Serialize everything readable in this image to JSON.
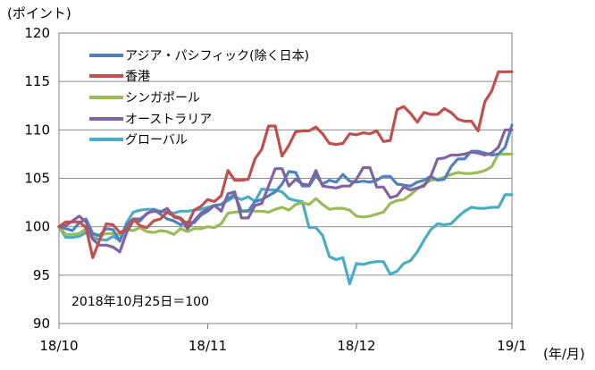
{
  "chart_data": {
    "type": "line",
    "ylabel": "(ポイント)",
    "xunit_label": "(年/月)",
    "annotation": "2018年10月25日＝100",
    "ylim": [
      90,
      120
    ],
    "yticks": [
      "120",
      "115",
      "110",
      "105",
      "100",
      "95",
      "90"
    ],
    "ytick_values": [
      120,
      115,
      110,
      105,
      100,
      95,
      90
    ],
    "xticks": [
      "18/10",
      "18/11",
      "18/12",
      "19/1"
    ],
    "xtick_values": [
      0,
      22,
      44,
      67
    ],
    "xlim": [
      0,
      67
    ],
    "series": [
      {
        "name": "アジア・パシフィック(除く日本)",
        "color": "#4F81BD",
        "values": [
          100,
          99.8,
          99.6,
          100.4,
          100.8,
          99.3,
          99.1,
          99.8,
          99.7,
          98.5,
          100.2,
          100.8,
          100.8,
          101.3,
          101.8,
          101.3,
          100.8,
          100.6,
          100.2,
          100.5,
          100.4,
          101.2,
          101.6,
          102.2,
          102.3,
          102.9,
          103.3,
          101.6,
          101.6,
          102.6,
          102.8,
          103.2,
          103.6,
          104.4,
          105.7,
          105.6,
          104.2,
          104.2,
          105.3,
          104.4,
          104.8,
          104.6,
          105.4,
          104.7,
          104.6,
          104.7,
          104.6,
          104.8,
          105.2,
          105.2,
          104.4,
          104.3,
          104.2,
          104.6,
          104.8,
          105.2,
          104.8,
          104.9,
          106.2,
          107.0,
          107.0,
          107.8,
          107.8,
          107.6,
          107.4,
          107.5,
          108.2,
          110.5
        ]
      },
      {
        "name": "香港",
        "color": "#C0504D",
        "values": [
          100,
          100.5,
          100.5,
          100.5,
          99.9,
          96.8,
          98.6,
          100.3,
          100.2,
          99.4,
          99.7,
          100.8,
          100.1,
          99.9,
          100.6,
          100.8,
          101.5,
          101.1,
          100.9,
          100.2,
          101.7,
          102.1,
          102.8,
          102.6,
          103.2,
          105.8,
          104.8,
          104.8,
          104.9,
          107.0,
          108.0,
          110.4,
          110.4,
          107.3,
          108.4,
          109.8,
          109.9,
          109.9,
          110.3,
          109.6,
          108.6,
          108.5,
          108.6,
          109.6,
          109.5,
          109.7,
          109.6,
          109.9,
          108.8,
          108.9,
          112.1,
          112.4,
          111.7,
          110.8,
          111.8,
          111.6,
          111.6,
          112.2,
          111.8,
          111.1,
          110.9,
          110.9,
          109.9,
          112.9,
          114.0,
          116.0,
          116.0,
          116.0
        ]
      },
      {
        "name": "シンガポール",
        "color": "#9BBB59",
        "values": [
          100,
          99.2,
          99.2,
          99.3,
          99.8,
          99.0,
          99.1,
          99.3,
          99.3,
          99.2,
          99.7,
          99.6,
          99.9,
          99.5,
          99.4,
          99.6,
          99.5,
          99.2,
          99.8,
          99.5,
          99.8,
          99.8,
          100.0,
          99.9,
          100.3,
          101.4,
          101.5,
          101.6,
          101.7,
          101.6,
          101.6,
          101.5,
          101.8,
          102.0,
          101.7,
          102.3,
          102.5,
          102.3,
          102.9,
          102.3,
          101.8,
          101.9,
          101.9,
          101.7,
          101.1,
          101.0,
          101.1,
          101.3,
          101.5,
          102.4,
          102.7,
          102.8,
          103.3,
          103.9,
          104.4,
          104.8,
          104.9,
          105.1,
          105.4,
          105.6,
          105.5,
          105.5,
          105.6,
          105.8,
          106.2,
          107.5,
          107.5,
          107.5
        ]
      },
      {
        "name": "オーストラリア",
        "color": "#8064A2",
        "values": [
          100,
          100.1,
          100.6,
          101.1,
          100.5,
          98.7,
          98.1,
          98.1,
          97.9,
          97.4,
          99.4,
          100.6,
          100.6,
          101.4,
          101.6,
          101.5,
          101.9,
          101.0,
          100.8,
          99.8,
          100.6,
          101.4,
          101.8,
          102.2,
          101.6,
          103.4,
          103.6,
          100.9,
          100.9,
          102.2,
          102.4,
          104.2,
          106.0,
          106.0,
          104.2,
          104.9,
          104.4,
          104.3,
          105.8,
          104.2,
          104.1,
          104.0,
          104.2,
          104.2,
          104.9,
          106.1,
          106.1,
          104.1,
          104.1,
          103.0,
          103.2,
          104.1,
          103.8,
          104.0,
          104.2,
          105.2,
          107.0,
          107.1,
          107.4,
          107.4,
          107.5,
          107.7,
          107.6,
          107.4,
          107.6,
          108.2,
          110.0,
          110.0
        ]
      },
      {
        "name": "グローバル",
        "color": "#4BACC6",
        "values": [
          100,
          98.9,
          98.9,
          99.0,
          99.4,
          98.8,
          98.7,
          98.6,
          99.0,
          98.6,
          100.4,
          101.5,
          101.7,
          101.8,
          101.8,
          101.6,
          101.5,
          101.4,
          101.6,
          101.6,
          101.7,
          101.8,
          102.0,
          102.2,
          102.3,
          102.7,
          103.1,
          102.8,
          103.1,
          102.6,
          103.9,
          103.8,
          103.8,
          103.6,
          102.9,
          102.7,
          102.6,
          99.9,
          99.9,
          99.1,
          96.9,
          96.6,
          96.8,
          94.1,
          96.2,
          96.1,
          96.3,
          96.4,
          96.4,
          95.1,
          95.4,
          96.2,
          96.5,
          97.4,
          98.6,
          99.7,
          100.3,
          100.2,
          100.3,
          101.0,
          101.6,
          102.0,
          101.9,
          101.9,
          102.0,
          102.0,
          103.3,
          103.3
        ]
      }
    ]
  }
}
